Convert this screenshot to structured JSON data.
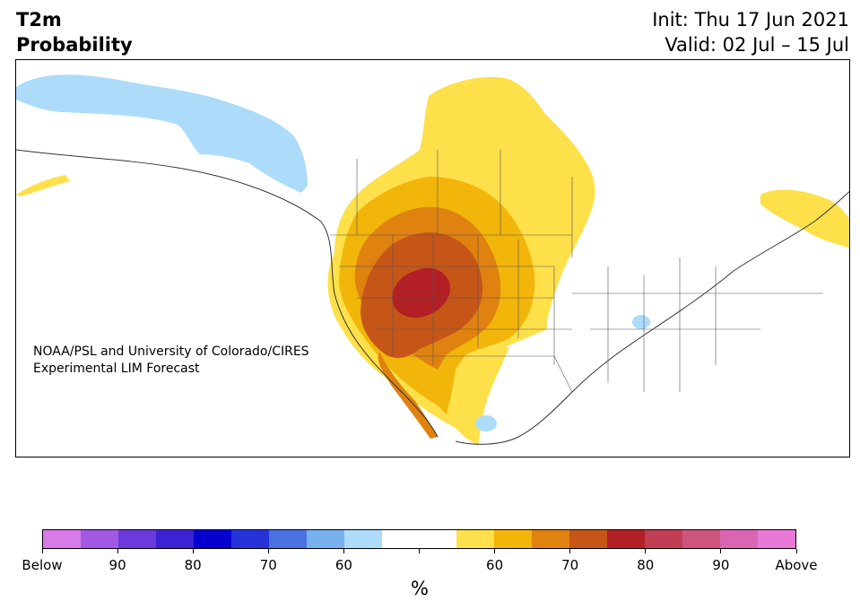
{
  "header": {
    "variable": "T2m",
    "product": "Probability",
    "init": "Init: Thu 17 Jun 2021",
    "valid": "Valid: 02 Jul – 15 Jul"
  },
  "map": {
    "credit_line1": "NOAA/PSL and University of Colorado/CIRES",
    "credit_line2": "Experimental LIM Forecast"
  },
  "colorbar": {
    "colors": [
      "#d67be8",
      "#a159e3",
      "#6a3adb",
      "#3b22d3",
      "#0500d0",
      "#2633d9",
      "#4b72e1",
      "#77b2ee",
      "#acdcfa",
      "#ffffff",
      "#ffffff",
      "#fde04a",
      "#f2b50a",
      "#df8210",
      "#c65617",
      "#b21f24",
      "#c23e54",
      "#cd557d",
      "#d966b3",
      "#e879d6"
    ],
    "tick_labels": [
      "Below",
      "90",
      "80",
      "70",
      "60",
      "",
      "60",
      "70",
      "80",
      "90",
      "Above"
    ],
    "units": "%"
  }
}
